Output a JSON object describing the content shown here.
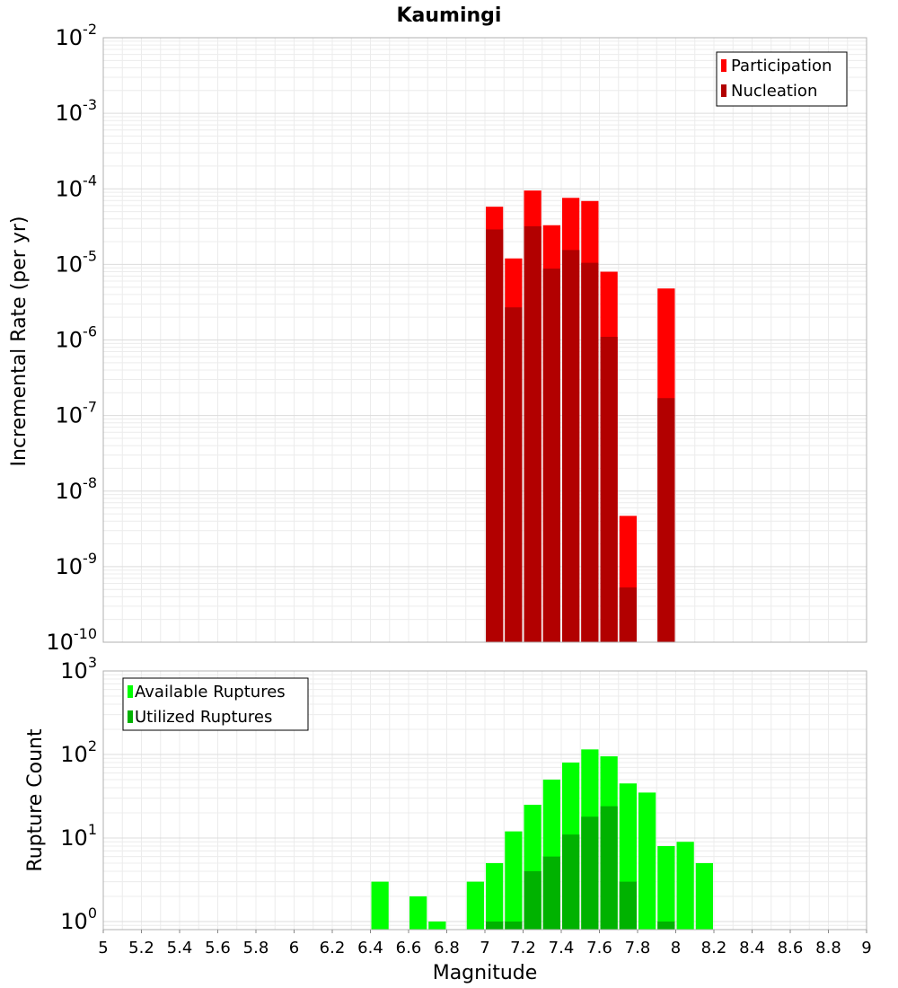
{
  "chart_data": [
    {
      "type": "bar",
      "title": "Kaumingi",
      "ylabel": "Incremental Rate (per yr)",
      "xlabel": "",
      "yscale": "log",
      "ylim": [
        1e-10,
        0.01
      ],
      "xlim": [
        5,
        9
      ],
      "grid": true,
      "legend_position": "top-right",
      "y_tick_labels": [
        {
          "base": "10",
          "exp": "-10",
          "value": 1e-10
        },
        {
          "base": "10",
          "exp": "-9",
          "value": 1e-09
        },
        {
          "base": "10",
          "exp": "-8",
          "value": 1e-08
        },
        {
          "base": "10",
          "exp": "-7",
          "value": 1e-07
        },
        {
          "base": "10",
          "exp": "-6",
          "value": 1e-06
        },
        {
          "base": "10",
          "exp": "-5",
          "value": 1e-05
        },
        {
          "base": "10",
          "exp": "-4",
          "value": 0.0001
        },
        {
          "base": "10",
          "exp": "-3",
          "value": 0.001
        },
        {
          "base": "10",
          "exp": "-2",
          "value": 0.01
        }
      ],
      "series": [
        {
          "name": "Participation",
          "color": "#ff0000",
          "points": [
            {
              "x": 7.05,
              "y": 5.8e-05
            },
            {
              "x": 7.15,
              "y": 1.2e-05
            },
            {
              "x": 7.25,
              "y": 9.5e-05
            },
            {
              "x": 7.35,
              "y": 3.3e-05
            },
            {
              "x": 7.45,
              "y": 7.6e-05
            },
            {
              "x": 7.55,
              "y": 6.9e-05
            },
            {
              "x": 7.65,
              "y": 8e-06
            },
            {
              "x": 7.75,
              "y": 4.7e-09
            },
            {
              "x": 7.95,
              "y": 4.8e-06
            }
          ]
        },
        {
          "name": "Nucleation",
          "color": "#b20000",
          "points": [
            {
              "x": 7.05,
              "y": 2.9e-05
            },
            {
              "x": 7.15,
              "y": 2.7e-06
            },
            {
              "x": 7.25,
              "y": 3.2e-05
            },
            {
              "x": 7.35,
              "y": 8.8e-06
            },
            {
              "x": 7.45,
              "y": 1.55e-05
            },
            {
              "x": 7.55,
              "y": 1.05e-05
            },
            {
              "x": 7.65,
              "y": 1.1e-06
            },
            {
              "x": 7.75,
              "y": 5.3e-10
            },
            {
              "x": 7.95,
              "y": 1.7e-07
            }
          ]
        }
      ]
    },
    {
      "type": "bar",
      "title": "",
      "ylabel": "Rupture Count",
      "xlabel": "Magnitude",
      "yscale": "log",
      "ylim": [
        0.8,
        1000
      ],
      "xlim": [
        5,
        9
      ],
      "grid": true,
      "legend_position": "top-left",
      "x_tick_labels": [
        "5",
        "5.2",
        "5.4",
        "5.6",
        "5.8",
        "6",
        "6.2",
        "6.4",
        "6.6",
        "6.8",
        "7",
        "7.2",
        "7.4",
        "7.6",
        "7.8",
        "8",
        "8.2",
        "8.4",
        "8.6",
        "8.8",
        "9"
      ],
      "y_tick_labels": [
        {
          "base": "10",
          "exp": "0",
          "value": 1
        },
        {
          "base": "10",
          "exp": "1",
          "value": 10
        },
        {
          "base": "10",
          "exp": "2",
          "value": 100
        },
        {
          "base": "10",
          "exp": "3",
          "value": 1000
        }
      ],
      "series": [
        {
          "name": "Available Ruptures",
          "color": "#00ff00",
          "points": [
            {
              "x": 6.45,
              "y": 3
            },
            {
              "x": 6.65,
              "y": 2
            },
            {
              "x": 6.75,
              "y": 1
            },
            {
              "x": 6.95,
              "y": 3
            },
            {
              "x": 7.05,
              "y": 5
            },
            {
              "x": 7.15,
              "y": 12
            },
            {
              "x": 7.25,
              "y": 25
            },
            {
              "x": 7.35,
              "y": 50
            },
            {
              "x": 7.45,
              "y": 80
            },
            {
              "x": 7.55,
              "y": 115
            },
            {
              "x": 7.65,
              "y": 95
            },
            {
              "x": 7.75,
              "y": 45
            },
            {
              "x": 7.85,
              "y": 35
            },
            {
              "x": 7.95,
              "y": 8
            },
            {
              "x": 8.05,
              "y": 9
            },
            {
              "x": 8.15,
              "y": 5
            }
          ]
        },
        {
          "name": "Utilized Ruptures",
          "color": "#00b200",
          "points": [
            {
              "x": 7.05,
              "y": 1
            },
            {
              "x": 7.15,
              "y": 1
            },
            {
              "x": 7.25,
              "y": 4
            },
            {
              "x": 7.35,
              "y": 6
            },
            {
              "x": 7.45,
              "y": 11
            },
            {
              "x": 7.55,
              "y": 18
            },
            {
              "x": 7.65,
              "y": 24
            },
            {
              "x": 7.75,
              "y": 3
            },
            {
              "x": 7.95,
              "y": 1
            }
          ]
        }
      ]
    }
  ]
}
